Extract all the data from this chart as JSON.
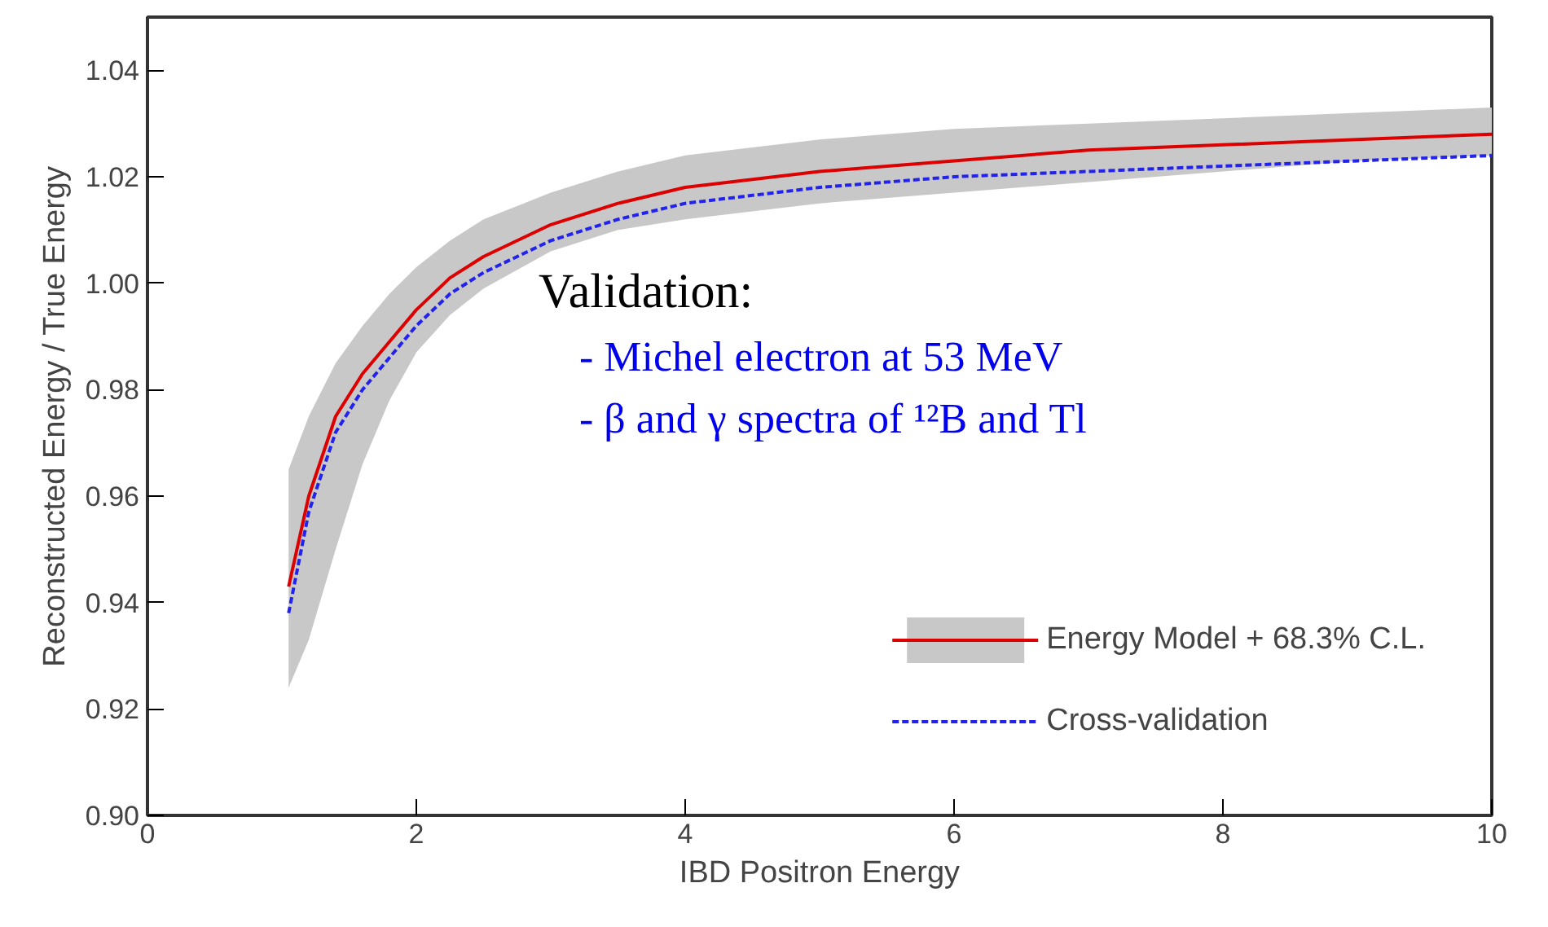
{
  "chart_data": {
    "type": "line",
    "xlabel": "IBD Positron Energy",
    "ylabel": "Reconstructed Energy / True Energy",
    "x": [
      1.05,
      1.2,
      1.4,
      1.6,
      1.8,
      2.0,
      2.25,
      2.5,
      3,
      3.5,
      4,
      5,
      6,
      7,
      8,
      9,
      10
    ],
    "series": [
      {
        "name": "Energy Model + 68.3% C.L.",
        "color": "#dd0000",
        "line_style": "solid",
        "values": [
          0.943,
          0.96,
          0.975,
          0.983,
          0.989,
          0.995,
          1.001,
          1.005,
          1.011,
          1.015,
          1.018,
          1.021,
          1.023,
          1.025,
          1.026,
          1.027,
          1.028
        ],
        "lower": [
          0.924,
          0.933,
          0.95,
          0.966,
          0.978,
          0.987,
          0.994,
          0.999,
          1.006,
          1.01,
          1.012,
          1.015,
          1.017,
          1.019,
          1.021,
          1.023,
          1.024
        ],
        "upper": [
          0.965,
          0.975,
          0.985,
          0.992,
          0.998,
          1.003,
          1.008,
          1.012,
          1.017,
          1.021,
          1.024,
          1.027,
          1.029,
          1.03,
          1.031,
          1.032,
          1.033
        ]
      },
      {
        "name": "Cross-validation",
        "color": "#2222ee",
        "line_style": "dashed",
        "values": [
          0.938,
          0.957,
          0.972,
          0.98,
          0.986,
          0.992,
          0.998,
          1.002,
          1.008,
          1.012,
          1.015,
          1.018,
          1.02,
          1.021,
          1.022,
          1.023,
          1.024
        ]
      }
    ],
    "xlim": [
      0,
      10
    ],
    "ylim": [
      0.9,
      1.05
    ],
    "xticks": [
      0,
      2,
      4,
      6,
      8,
      10
    ],
    "yticks": [
      {
        "value": 0.9,
        "label": "0.90"
      },
      {
        "value": 0.92,
        "label": "0.92"
      },
      {
        "value": 0.94,
        "label": "0.94"
      },
      {
        "value": 0.96,
        "label": "0.96"
      },
      {
        "value": 0.98,
        "label": "0.98"
      },
      {
        "value": 1.0,
        "label": "1.00"
      },
      {
        "value": 1.02,
        "label": "1.02"
      },
      {
        "value": 1.04,
        "label": "1.04"
      }
    ],
    "annotations": [
      "Validation:",
      "- Michel electron at 53 MeV",
      "- β and γ spectra of ¹²B and Tl"
    ],
    "grid": false,
    "legend": "bottom right",
    "marker": "none"
  }
}
